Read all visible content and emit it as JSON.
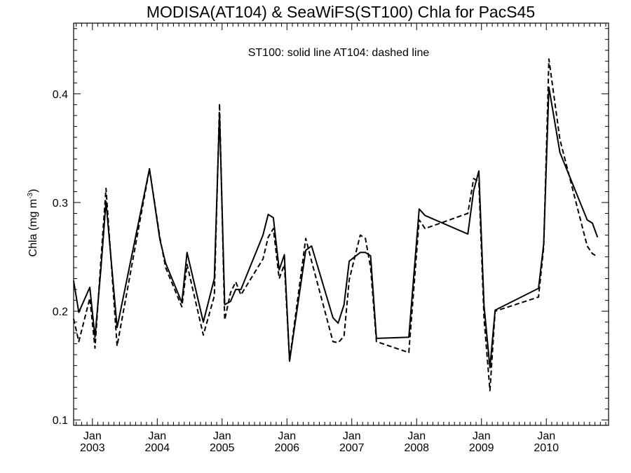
{
  "chart_data": {
    "type": "line",
    "title": "MODISA(AT104) & SeaWiFS(ST100)  Chla for PacS45",
    "annotation": "ST100: solid line   AT104: dashed line",
    "xlabel": "",
    "ylabel": "Chla (mg m",
    "ylabel_superscript": "-3",
    "ylabel_suffix": ")",
    "x_unit": "year (decimal)",
    "xlim": [
      2002.71,
      2010.96
    ],
    "ylim": [
      0.095,
      0.465
    ],
    "x_ticks": [
      {
        "month": "Jan",
        "year": "2003",
        "x": 2003.0
      },
      {
        "month": "Jan",
        "year": "2004",
        "x": 2004.0
      },
      {
        "month": "Jan",
        "year": "2005",
        "x": 2005.0
      },
      {
        "month": "Jan",
        "year": "2006",
        "x": 2006.0
      },
      {
        "month": "Jan",
        "year": "2007",
        "x": 2007.0
      },
      {
        "month": "Jan",
        "year": "2008",
        "x": 2008.0
      },
      {
        "month": "Jan",
        "year": "2009",
        "x": 2009.0
      },
      {
        "month": "Jan",
        "year": "2010",
        "x": 2010.0
      }
    ],
    "y_ticks": [
      {
        "label": "0.1",
        "value": 0.1
      },
      {
        "label": "0.2",
        "value": 0.2
      },
      {
        "label": "0.3",
        "value": 0.3
      },
      {
        "label": "0.4",
        "value": 0.4
      }
    ],
    "grid": false,
    "series": [
      {
        "name": "ST100",
        "style": "solid",
        "color": "#000000",
        "points": [
          [
            2002.71,
            0.228
          ],
          [
            2002.79,
            0.199
          ],
          [
            2002.96,
            0.222
          ],
          [
            2003.04,
            0.176
          ],
          [
            2003.13,
            0.238
          ],
          [
            2003.21,
            0.301
          ],
          [
            2003.38,
            0.185
          ],
          [
            2003.88,
            0.331
          ],
          [
            2004.04,
            0.266
          ],
          [
            2004.13,
            0.244
          ],
          [
            2004.38,
            0.208
          ],
          [
            2004.46,
            0.254
          ],
          [
            2004.71,
            0.19
          ],
          [
            2004.88,
            0.23
          ],
          [
            2004.96,
            0.382
          ],
          [
            2005.04,
            0.206
          ],
          [
            2005.13,
            0.209
          ],
          [
            2005.21,
            0.22
          ],
          [
            2005.29,
            0.22
          ],
          [
            2005.63,
            0.27
          ],
          [
            2005.71,
            0.289
          ],
          [
            2005.79,
            0.286
          ],
          [
            2005.88,
            0.238
          ],
          [
            2005.96,
            0.252
          ],
          [
            2006.04,
            0.154
          ],
          [
            2006.29,
            0.256
          ],
          [
            2006.38,
            0.26
          ],
          [
            2006.71,
            0.194
          ],
          [
            2006.79,
            0.189
          ],
          [
            2006.88,
            0.206
          ],
          [
            2006.96,
            0.246
          ],
          [
            2007.13,
            0.254
          ],
          [
            2007.21,
            0.254
          ],
          [
            2007.29,
            0.251
          ],
          [
            2007.38,
            0.175
          ],
          [
            2007.88,
            0.176
          ],
          [
            2008.04,
            0.294
          ],
          [
            2008.13,
            0.288
          ],
          [
            2008.79,
            0.271
          ],
          [
            2008.88,
            0.311
          ],
          [
            2008.96,
            0.329
          ],
          [
            2009.04,
            0.205
          ],
          [
            2009.13,
            0.148
          ],
          [
            2009.21,
            0.201
          ],
          [
            2009.88,
            0.221
          ],
          [
            2009.96,
            0.262
          ],
          [
            2010.04,
            0.406
          ],
          [
            2010.21,
            0.346
          ],
          [
            2010.63,
            0.284
          ],
          [
            2010.71,
            0.281
          ],
          [
            2010.79,
            0.268
          ]
        ]
      },
      {
        "name": "AT104",
        "style": "dashed",
        "color": "#000000",
        "points": [
          [
            2002.71,
            0.193
          ],
          [
            2002.79,
            0.172
          ],
          [
            2002.96,
            0.212
          ],
          [
            2003.04,
            0.166
          ],
          [
            2003.13,
            0.246
          ],
          [
            2003.21,
            0.313
          ],
          [
            2003.38,
            0.168
          ],
          [
            2003.88,
            0.331
          ],
          [
            2004.04,
            0.268
          ],
          [
            2004.13,
            0.24
          ],
          [
            2004.38,
            0.204
          ],
          [
            2004.46,
            0.243
          ],
          [
            2004.71,
            0.178
          ],
          [
            2004.88,
            0.214
          ],
          [
            2004.96,
            0.391
          ],
          [
            2005.04,
            0.192
          ],
          [
            2005.13,
            0.217
          ],
          [
            2005.21,
            0.227
          ],
          [
            2005.29,
            0.215
          ],
          [
            2005.63,
            0.248
          ],
          [
            2005.71,
            0.268
          ],
          [
            2005.79,
            0.276
          ],
          [
            2005.88,
            0.23
          ],
          [
            2005.96,
            0.243
          ],
          [
            2006.04,
            0.155
          ],
          [
            2006.29,
            0.267
          ],
          [
            2006.38,
            0.246
          ],
          [
            2006.71,
            0.172
          ],
          [
            2006.79,
            0.171
          ],
          [
            2006.88,
            0.177
          ],
          [
            2006.96,
            0.229
          ],
          [
            2007.13,
            0.27
          ],
          [
            2007.21,
            0.267
          ],
          [
            2007.29,
            0.24
          ],
          [
            2007.38,
            0.172
          ],
          [
            2007.88,
            0.162
          ],
          [
            2008.04,
            0.284
          ],
          [
            2008.13,
            0.276
          ],
          [
            2008.79,
            0.29
          ],
          [
            2008.88,
            0.322
          ],
          [
            2008.96,
            0.319
          ],
          [
            2009.04,
            0.193
          ],
          [
            2009.13,
            0.127
          ],
          [
            2009.21,
            0.2
          ],
          [
            2009.88,
            0.213
          ],
          [
            2009.96,
            0.259
          ],
          [
            2010.04,
            0.432
          ],
          [
            2010.21,
            0.358
          ],
          [
            2010.63,
            0.26
          ],
          [
            2010.71,
            0.253
          ],
          [
            2010.79,
            0.25
          ]
        ]
      }
    ]
  }
}
